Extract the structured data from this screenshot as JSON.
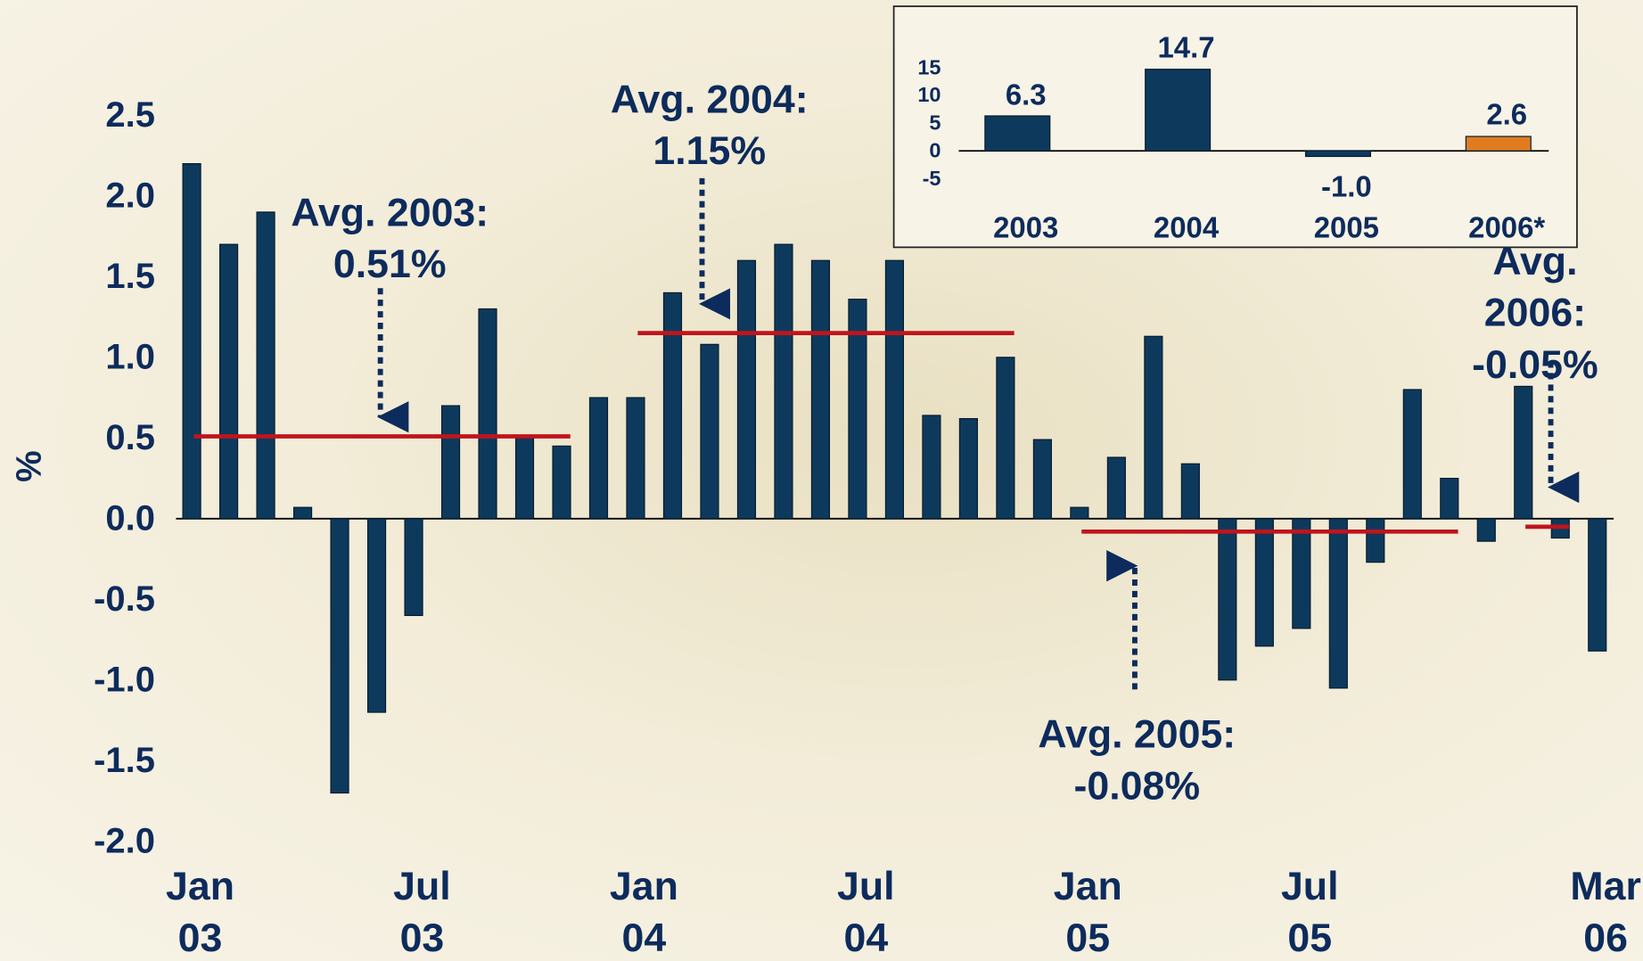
{
  "chart_data": [
    {
      "type": "bar",
      "ylabel": "%",
      "categories": [
        "Jan\n03",
        null,
        null,
        null,
        null,
        null,
        "Jul\n03",
        null,
        null,
        null,
        null,
        null,
        "Jan\n04",
        null,
        null,
        null,
        null,
        null,
        "Jul\n04",
        null,
        null,
        null,
        null,
        null,
        "Jan\n05",
        null,
        null,
        null,
        null,
        null,
        "Jul\n05",
        null,
        null,
        null,
        null,
        null,
        null,
        null,
        "Mar\n06"
      ],
      "values": [
        2.2,
        1.7,
        1.9,
        0.07,
        -1.7,
        -1.2,
        -0.6,
        0.7,
        1.3,
        0.5,
        0.45,
        0.75,
        0.75,
        1.4,
        1.08,
        1.6,
        1.7,
        1.6,
        1.36,
        1.6,
        0.64,
        0.62,
        1.0,
        0.49,
        0.07,
        0.38,
        1.13,
        0.34,
        -1.0,
        -0.79,
        -0.68,
        -1.05,
        -0.27,
        0.8,
        0.25,
        -0.14,
        0.82,
        -0.12,
        -0.82
      ],
      "color": "#0d3a5c",
      "ylim": [
        -2.0,
        2.5
      ],
      "yticks": [
        {
          "value": -2,
          "label": "-2.0"
        },
        {
          "value": -1.5,
          "label": "-1.5"
        },
        {
          "value": -1,
          "label": "-1.0"
        },
        {
          "value": -0.5,
          "label": "-0.5"
        },
        {
          "value": 0,
          "label": "0.0"
        },
        {
          "value": 0.5,
          "label": "0.5"
        },
        {
          "value": 1,
          "label": "1.0"
        },
        {
          "value": 1.5,
          "label": "1.5"
        },
        {
          "value": 2,
          "label": "2.0"
        },
        {
          "value": 2.5,
          "label": "2.5"
        }
      ],
      "averages": {
        "values": [
          0.51,
          1.15,
          -0.08,
          -0.05
        ],
        "value_labels": [
          "Avg. 2003:\n0.51%",
          "Avg. 2004:\n1.15%",
          "Avg. 2005:\n-0.08%",
          "Avg. 2006:\n-0.05%"
        ],
        "color": "#c0141c"
      }
    },
    {
      "type": "bar",
      "categories": [
        "2003",
        "2004",
        "2005",
        "2006*"
      ],
      "values": [
        6.3,
        14.7,
        -1.0,
        2.6
      ],
      "value_labels": [
        "6.3",
        "14.7",
        "-1.0",
        "2.6"
      ],
      "colors": [
        "#0d3a5c",
        "#0d3a5c",
        "#0d3a5c",
        "#e07b20"
      ],
      "ylim": [
        -5,
        15
      ],
      "yticks": [
        -5,
        0,
        5,
        10,
        15
      ]
    }
  ]
}
